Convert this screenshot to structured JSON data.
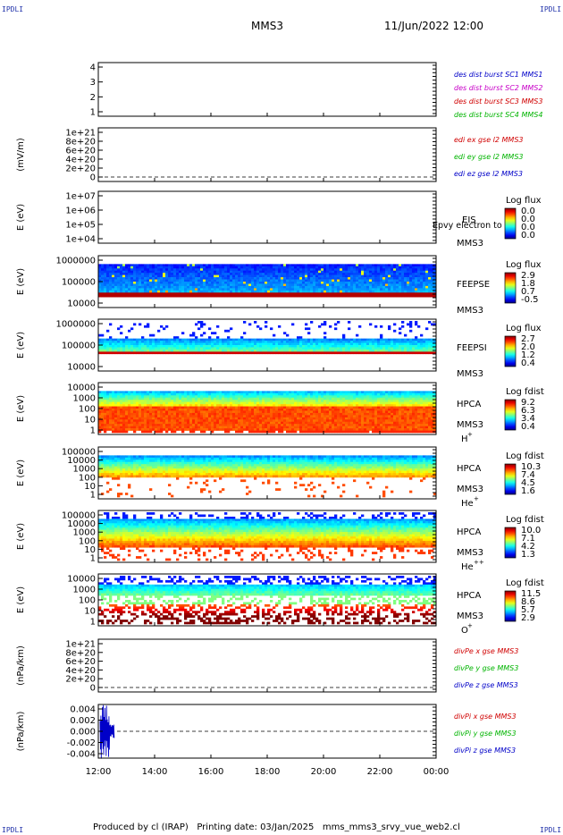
{
  "header": {
    "corner_label": "IPDLI",
    "title": "MMS3",
    "datetime": "11/Jun/2022 12:00"
  },
  "footer": {
    "text": "Produced by cl (IRAP)   Printing date: 03/Jan/2025   mms_mms3_srvy_vue_web2.cl"
  },
  "colors": {
    "blue": "#0000c8",
    "magenta": "#c800c8",
    "red": "#d00000",
    "green": "#00b400"
  },
  "chart_data": {
    "type": "heatmap",
    "x_ticks": [
      "12:00",
      "14:00",
      "16:00",
      "18:00",
      "20:00",
      "22:00",
      "00:00"
    ],
    "panels": [
      {
        "id": "burst",
        "kind": "empty",
        "ylabel": "",
        "yticks": [
          "4",
          "3",
          "2",
          "1"
        ],
        "legend": [
          {
            "text": "des dist burst SC1 MMS1",
            "color": "#0000c8"
          },
          {
            "text": "des dist burst SC2 MMS2",
            "color": "#c800c8"
          },
          {
            "text": "des dist burst SC3 MMS3",
            "color": "#d00000"
          },
          {
            "text": "des dist burst SC4 MMS4",
            "color": "#00b400"
          }
        ]
      },
      {
        "id": "edi",
        "kind": "zero",
        "ylabel": "(mV/m)",
        "yticks": [
          "1e+21",
          "8e+20",
          "6e+20",
          "4e+20",
          "2e+20",
          "0"
        ],
        "legend": [
          {
            "text": "edi ex gse l2 MMS3",
            "color": "#d00000"
          },
          {
            "text": "edi ey gse l2 MMS3",
            "color": "#00b400"
          },
          {
            "text": "edi ez gse l2 MMS3",
            "color": "#0000c8"
          }
        ]
      },
      {
        "id": "eis",
        "kind": "empty",
        "ylabel": "E (eV)",
        "yticks": [
          "1e+07",
          "1e+06",
          "1e+05",
          "1e+04"
        ],
        "labels": [
          "EIS",
          "Epvy electron to",
          "MMS3"
        ],
        "cbar_title": "Log flux",
        "cbar": [
          "0.0",
          "0.0",
          "0.0",
          "0.0"
        ]
      },
      {
        "id": "feepse",
        "kind": "feeps_e",
        "ylabel": "E (eV)",
        "yticks": [
          "1000000",
          "100000",
          "10000"
        ],
        "labels": [
          "FEEPSE",
          "MMS3"
        ],
        "cbar_title": "Log flux",
        "cbar": [
          "2.9",
          "1.8",
          "0.7",
          "-0.5"
        ]
      },
      {
        "id": "feepsi",
        "kind": "feeps_i",
        "ylabel": "E (eV)",
        "yticks": [
          "1000000",
          "100000",
          "10000"
        ],
        "labels": [
          "FEEPSI",
          "MMS3"
        ],
        "cbar_title": "Log flux",
        "cbar": [
          "2.7",
          "2.0",
          "1.2",
          "0.4"
        ]
      },
      {
        "id": "hpca_h",
        "kind": "hpca_h",
        "ylabel": "E (eV)",
        "yticks": [
          "10000",
          "1000",
          "100",
          "10",
          "1"
        ],
        "labels": [
          "HPCA",
          "MMS3"
        ],
        "species": "H",
        "species_sup": "+",
        "cbar_title": "Log fdist",
        "cbar": [
          "9.2",
          "6.3",
          "3.4",
          "0.4"
        ]
      },
      {
        "id": "hpca_he",
        "kind": "hpca_he",
        "ylabel": "E (eV)",
        "yticks": [
          "100000",
          "10000",
          "1000",
          "100",
          "10",
          "1"
        ],
        "labels": [
          "HPCA",
          "MMS3"
        ],
        "species": "He",
        "species_sup": "+",
        "cbar_title": "Log fdist",
        "cbar": [
          "10.3",
          "7.4",
          "4.5",
          "1.6"
        ]
      },
      {
        "id": "hpca_hepp",
        "kind": "hpca_hepp",
        "ylabel": "E (eV)",
        "yticks": [
          "100000",
          "10000",
          "1000",
          "100",
          "10",
          "1"
        ],
        "labels": [
          "HPCA",
          "MMS3"
        ],
        "species": "He",
        "species_sup": "++",
        "cbar_title": "Log fdist",
        "cbar": [
          "10.0",
          "7.1",
          "4.2",
          "1.3"
        ]
      },
      {
        "id": "hpca_o",
        "kind": "hpca_o",
        "ylabel": "E (eV)",
        "yticks": [
          "10000",
          "1000",
          "100",
          "10",
          "1"
        ],
        "labels": [
          "HPCA",
          "MMS3"
        ],
        "species": "O",
        "species_sup": "+",
        "cbar_title": "Log fdist",
        "cbar": [
          "11.5",
          "8.6",
          "5.7",
          "2.9"
        ]
      },
      {
        "id": "divpe",
        "kind": "zero",
        "ylabel": "(nPa/km)",
        "yticks": [
          "1e+21",
          "8e+20",
          "6e+20",
          "4e+20",
          "2e+20",
          "0"
        ],
        "legend": [
          {
            "text": "divPe x gse MMS3",
            "color": "#d00000"
          },
          {
            "text": "divPe y gse MMS3",
            "color": "#00b400"
          },
          {
            "text": "divPe z gse MMS3",
            "color": "#0000c8"
          }
        ]
      },
      {
        "id": "divpi",
        "kind": "divpi",
        "ylabel": "(nPa/km)",
        "yticks": [
          "0.004",
          "0.002",
          "0.000",
          "-0.002",
          "-0.004"
        ],
        "legend": [
          {
            "text": "divPi x gse MMS3",
            "color": "#d00000"
          },
          {
            "text": "divPi y gse MMS3",
            "color": "#00b400"
          },
          {
            "text": "divPi z gse MMS3",
            "color": "#0000c8"
          }
        ]
      }
    ]
  }
}
